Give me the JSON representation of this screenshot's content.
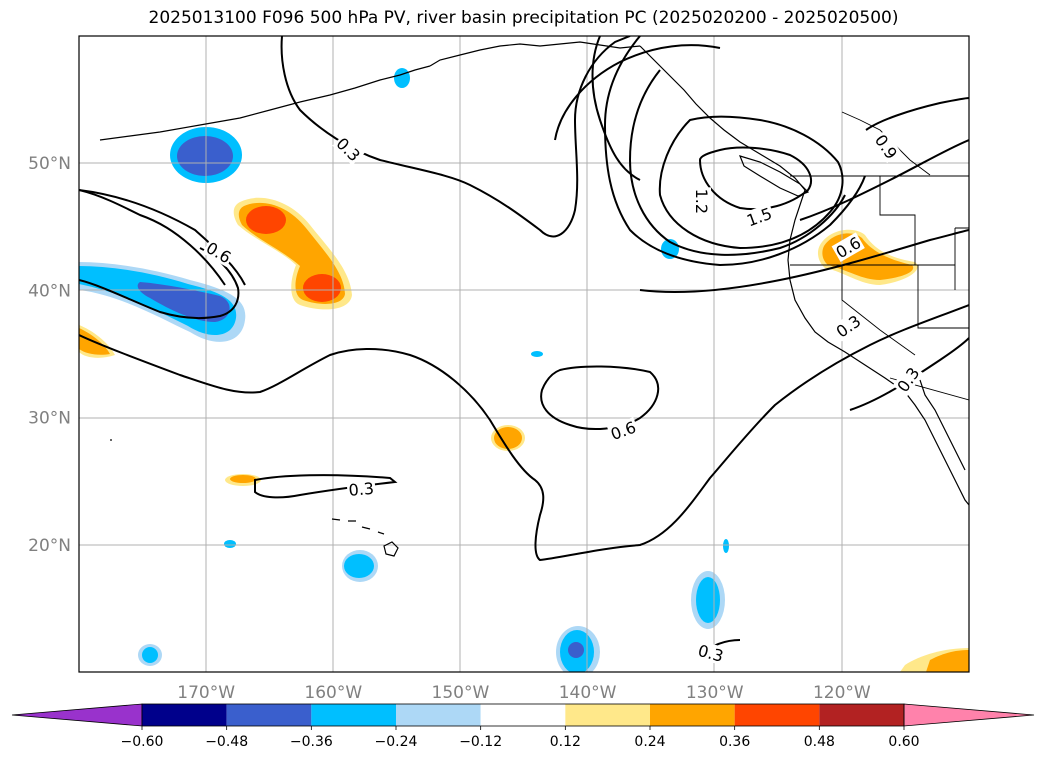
{
  "title": "2025013100 F096 500 hPa PV, river basin precipitation PC (2025020200 - 2025020500)",
  "map": {
    "projection": "PlateCarree",
    "lon_range": [
      -180,
      -110
    ],
    "lat_range": [
      10,
      60
    ],
    "gridlines": true,
    "lat_ticks": [
      {
        "value": 20,
        "label": "20°N"
      },
      {
        "value": 30,
        "label": "30°N"
      },
      {
        "value": 40,
        "label": "40°N"
      },
      {
        "value": 50,
        "label": "50°N"
      }
    ],
    "lon_ticks": [
      {
        "value": -170,
        "label": "170°W"
      },
      {
        "value": -160,
        "label": "160°W"
      },
      {
        "value": -150,
        "label": "150°W"
      },
      {
        "value": -140,
        "label": "140°W"
      },
      {
        "value": -130,
        "label": "130°W"
      },
      {
        "value": -120,
        "label": "120°W"
      }
    ],
    "contour_labels": [
      {
        "text": "0.3",
        "lon": -158.8,
        "lat": 51.1,
        "rot": 45
      },
      {
        "text": "1.2",
        "lon": -131.0,
        "lat": 47.0,
        "rot": 90
      },
      {
        "text": "1.5",
        "lon": -126.5,
        "lat": 45.8,
        "rot": -20
      },
      {
        "text": "0.9",
        "lon": -116.5,
        "lat": 51.3,
        "rot": 55
      },
      {
        "text": "0.6",
        "lon": -119.5,
        "lat": 43.4,
        "rot": -30
      },
      {
        "text": "0.3",
        "lon": -119.5,
        "lat": 37.2,
        "rot": -35
      },
      {
        "text": "0.3",
        "lon": -114.8,
        "lat": 33.0,
        "rot": -55
      },
      {
        "text": "0.6",
        "lon": -169.0,
        "lat": 43.0,
        "rot": 30
      },
      {
        "text": "0.6",
        "lon": -137.2,
        "lat": 29.0,
        "rot": -20
      },
      {
        "text": "0.3",
        "lon": -157.8,
        "lat": 24.4,
        "rot": -5
      },
      {
        "text": "0.3",
        "lon": -130.3,
        "lat": 11.5,
        "rot": 15
      }
    ]
  },
  "colorbar": {
    "levels": [
      "-0.60",
      "-0.48",
      "-0.36",
      "-0.24",
      "-0.12",
      "0.12",
      "0.24",
      "0.36",
      "0.48",
      "0.60"
    ],
    "colors": [
      "#9932CC",
      "#00008B",
      "#3A5FCD",
      "#00BFFF",
      "#ADD8F6",
      "#FFFFFF",
      "#FFE88A",
      "#FFA500",
      "#FF4500",
      "#B22222",
      "#FF82AB"
    ]
  }
}
